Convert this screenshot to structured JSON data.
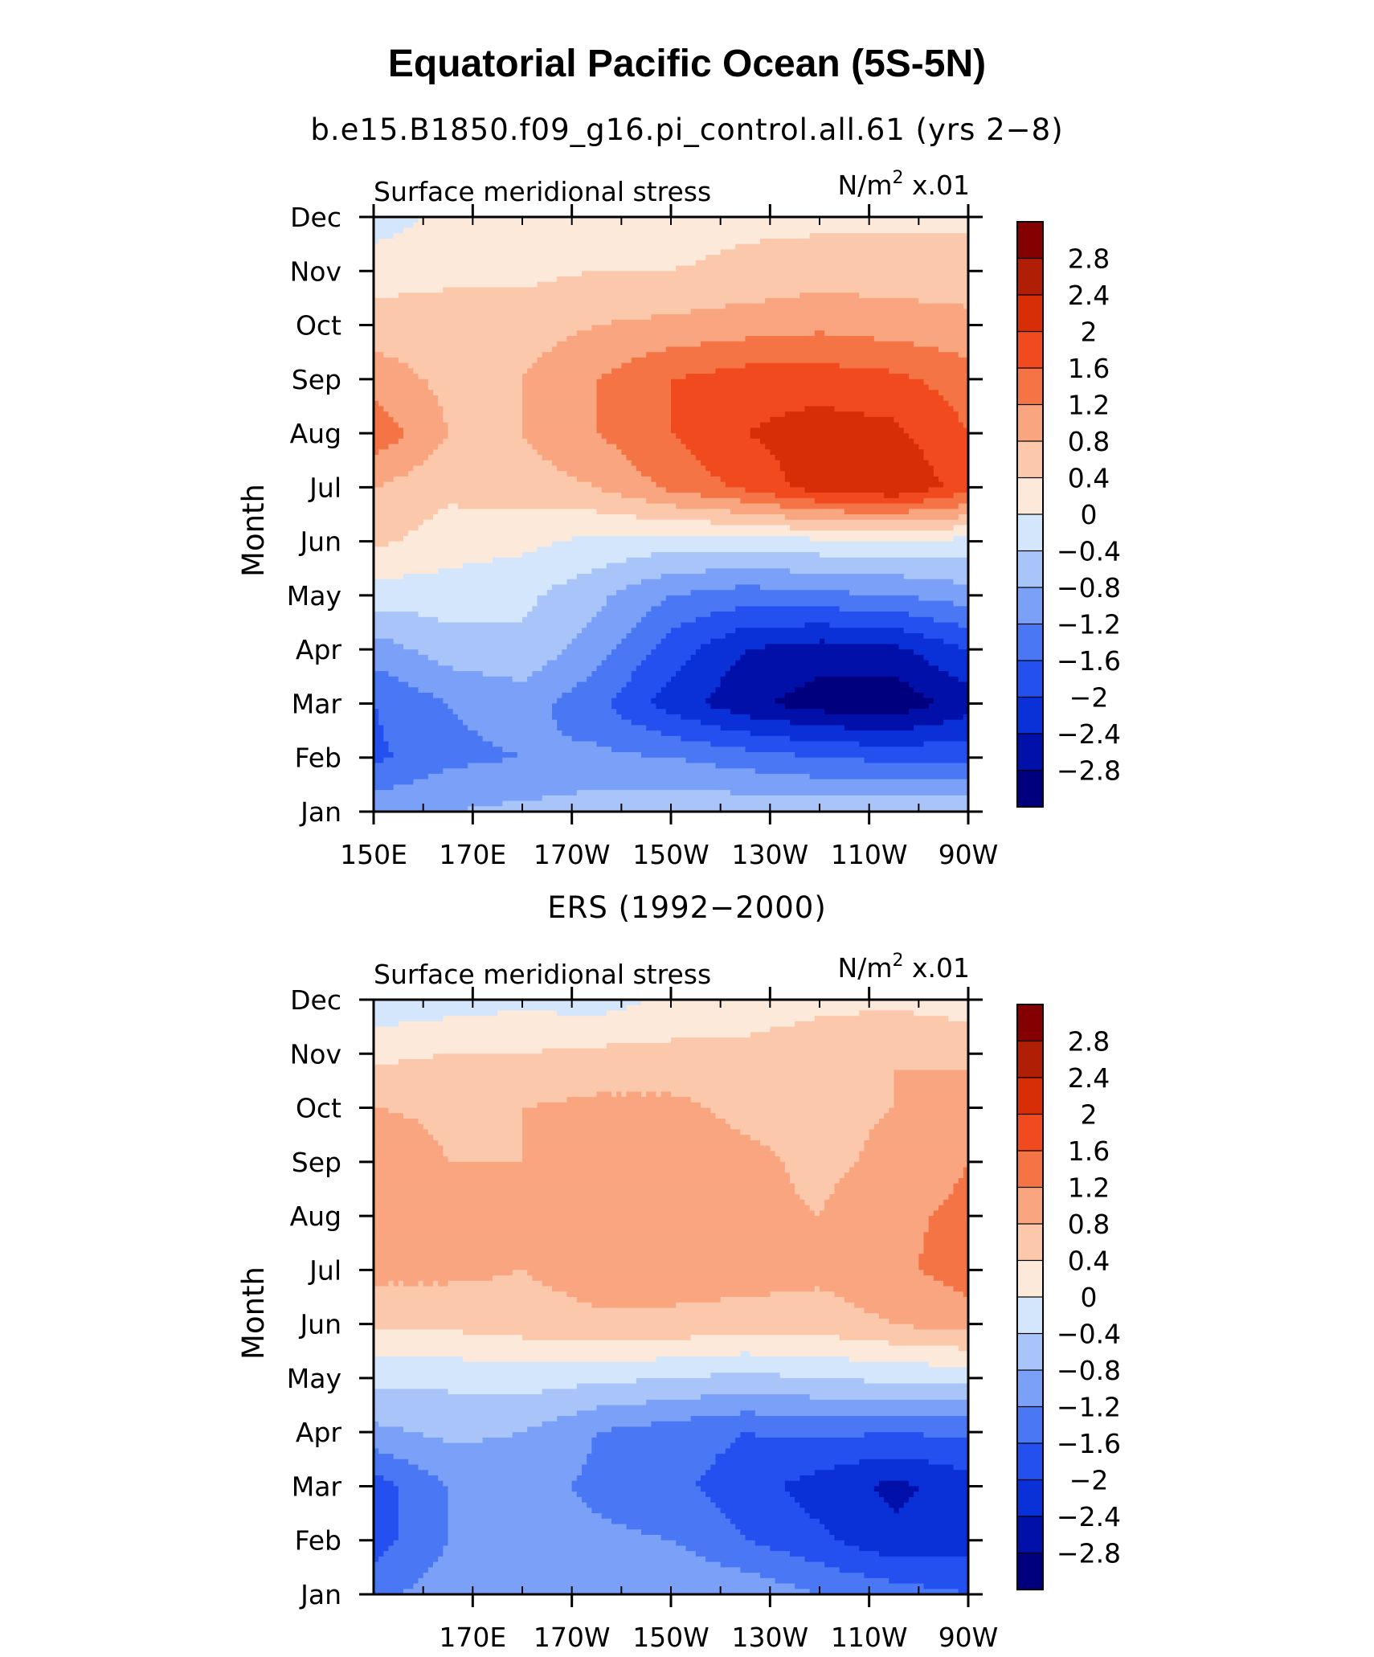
{
  "figure": {
    "title": "Equatorial Pacific Ocean (5S-5N)"
  },
  "palette": {
    "levels": [
      -2.8,
      -2.4,
      -2,
      -1.6,
      -1.2,
      -0.8,
      -0.4,
      0,
      0.4,
      0.8,
      1.2,
      1.6,
      2,
      2.4,
      2.8
    ],
    "colors": [
      "#00007f",
      "#0010a8",
      "#0a30d8",
      "#2450f0",
      "#4a78f5",
      "#7aa0f7",
      "#a8c4f9",
      "#d4e6fc",
      "#fde9da",
      "#fbc8ac",
      "#f9a57f",
      "#f57445",
      "#f04a1e",
      "#d82e08",
      "#b01e06",
      "#850000"
    ]
  },
  "chart_data": [
    {
      "type": "heatmap",
      "panel_title": "b.e15.B1850.f09_g16.pi_control.all.61 (yrs 2−8)",
      "left_label": "Surface meridional stress",
      "units_main": "N/m",
      "units_exp": "2",
      "units_scale": "x.01",
      "ylabel": "Month",
      "y_categories": [
        "Jan",
        "Feb",
        "Mar",
        "Apr",
        "May",
        "Jun",
        "Jul",
        "Aug",
        "Sep",
        "Oct",
        "Nov",
        "Dec"
      ],
      "x_tick_labels": [
        "150E",
        "170E",
        "170W",
        "150W",
        "130W",
        "110W",
        "90W"
      ],
      "x_tick_lons": [
        150,
        170,
        190,
        210,
        230,
        250,
        270
      ],
      "xlim": [
        150,
        270
      ],
      "ylim": [
        1,
        12
      ],
      "colorbar_labels": [
        "2.8",
        "2.4",
        "2",
        "1.6",
        "1.2",
        "0.8",
        "0.4",
        "0",
        "−0.4",
        "−0.8",
        "−1.2",
        "−1.6",
        "−2",
        "−2.4",
        "−2.8"
      ],
      "x": [
        150,
        165,
        180,
        195,
        210,
        225,
        240,
        255,
        270
      ],
      "z": [
        [
          -0.9,
          -0.8,
          -0.7,
          -0.6,
          -0.5,
          -0.5,
          -0.5,
          -0.5,
          -0.5
        ],
        [
          -1.7,
          -1.3,
          -1.2,
          -1.1,
          -1.2,
          -1.4,
          -1.6,
          -1.7,
          -1.7
        ],
        [
          -1.6,
          -1.2,
          -1.0,
          -1.5,
          -2.2,
          -2.7,
          -3.0,
          -3.1,
          -2.6
        ],
        [
          -1.0,
          -0.6,
          -0.5,
          -1.0,
          -1.8,
          -2.4,
          -2.6,
          -2.5,
          -2.0
        ],
        [
          -0.2,
          -0.2,
          -0.3,
          -0.7,
          -1.2,
          -1.4,
          -1.3,
          -1.2,
          -1.0
        ],
        [
          0.5,
          0.2,
          0.1,
          -0.1,
          -0.2,
          -0.2,
          -0.1,
          -0.1,
          -0.1
        ],
        [
          0.8,
          0.5,
          0.6,
          0.8,
          1.3,
          1.7,
          2.2,
          2.4,
          1.8
        ],
        [
          1.5,
          0.8,
          0.8,
          1.2,
          1.6,
          2.0,
          2.2,
          2.1,
          1.6
        ],
        [
          1.0,
          0.7,
          0.8,
          1.2,
          1.6,
          1.8,
          1.8,
          1.7,
          1.4
        ],
        [
          0.6,
          0.6,
          0.6,
          0.8,
          0.9,
          1.0,
          1.1,
          1.0,
          0.9
        ],
        [
          0.2,
          0.3,
          0.3,
          0.4,
          0.4,
          0.5,
          0.6,
          0.6,
          0.6
        ],
        [
          -0.2,
          0.1,
          0.2,
          0.2,
          0.2,
          0.3,
          0.3,
          0.3,
          0.3
        ]
      ]
    },
    {
      "type": "heatmap",
      "panel_title": "ERS (1992−2000)",
      "left_label": "Surface meridional stress",
      "units_main": "N/m",
      "units_exp": "2",
      "units_scale": "x.01",
      "ylabel": "Month",
      "y_categories": [
        "Jan",
        "Feb",
        "Mar",
        "Apr",
        "May",
        "Jun",
        "Jul",
        "Aug",
        "Sep",
        "Oct",
        "Nov",
        "Dec"
      ],
      "x_tick_labels": [
        "170E",
        "170W",
        "150W",
        "130W",
        "110W",
        "90W"
      ],
      "x_tick_lons": [
        170,
        190,
        210,
        230,
        250,
        270
      ],
      "xlim": [
        150,
        270
      ],
      "ylim": [
        1,
        12
      ],
      "colorbar_labels": [
        "2.8",
        "2.4",
        "2",
        "1.6",
        "1.2",
        "0.8",
        "0.4",
        "0",
        "−0.4",
        "−0.8",
        "−1.2",
        "−1.6",
        "−2",
        "−2.4",
        "−2.8"
      ],
      "x": [
        150,
        165,
        180,
        195,
        210,
        225,
        240,
        255,
        270
      ],
      "z": [
        [
          -1.3,
          -1.0,
          -0.8,
          -0.8,
          -0.8,
          -0.9,
          -1.2,
          -1.4,
          -1.6
        ],
        [
          -1.8,
          -1.2,
          -1.0,
          -1.1,
          -1.2,
          -1.6,
          -1.9,
          -2.3,
          -2.2
        ],
        [
          -1.8,
          -1.2,
          -1.0,
          -1.3,
          -1.5,
          -1.8,
          -2.2,
          -2.5,
          -2.2
        ],
        [
          -0.9,
          -0.7,
          -0.8,
          -1.2,
          -1.4,
          -1.6,
          -1.5,
          -1.6,
          -1.5
        ],
        [
          -0.3,
          -0.3,
          -0.2,
          -0.3,
          -0.4,
          -0.5,
          -0.4,
          -0.3,
          -0.3
        ],
        [
          0.5,
          0.5,
          0.6,
          0.7,
          0.7,
          0.6,
          0.6,
          0.8,
          1.0
        ],
        [
          0.9,
          0.9,
          0.8,
          1.0,
          1.0,
          1.0,
          0.9,
          1.1,
          1.4
        ],
        [
          0.9,
          0.8,
          0.9,
          1.0,
          1.0,
          0.9,
          0.8,
          1.1,
          1.3
        ],
        [
          1.2,
          0.8,
          0.8,
          1.0,
          1.0,
          0.9,
          0.7,
          0.9,
          1.2
        ],
        [
          0.8,
          0.7,
          0.8,
          0.9,
          0.9,
          0.7,
          0.7,
          0.8,
          1.0
        ],
        [
          0.3,
          0.4,
          0.4,
          0.5,
          0.5,
          0.5,
          0.6,
          0.8,
          0.7
        ],
        [
          -0.3,
          -0.2,
          -0.1,
          -0.2,
          0.1,
          0.2,
          0.3,
          0.3,
          0.2
        ]
      ]
    }
  ]
}
